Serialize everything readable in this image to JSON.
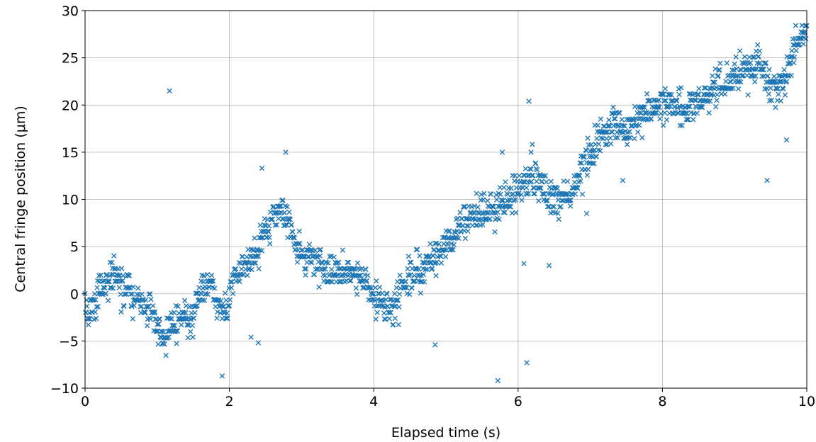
{
  "chart_data": {
    "type": "scatter",
    "title": "",
    "xlabel": "Elapsed time (s)",
    "ylabel": "Central fringe position (μm)",
    "xlim": [
      0,
      10
    ],
    "ylim": [
      -10,
      30
    ],
    "xticks": [
      0,
      2,
      4,
      6,
      8,
      10
    ],
    "yticks": [
      -10,
      -5,
      0,
      5,
      10,
      15,
      20,
      25,
      30
    ],
    "xtick_labels": [
      "0",
      "2",
      "4",
      "6",
      "8",
      "10"
    ],
    "ytick_labels": [
      "−10",
      "−5",
      "0",
      "5",
      "10",
      "15",
      "20",
      "25",
      "30"
    ],
    "grid": true,
    "marker": "x",
    "color": "#1f77b4",
    "series": [
      {
        "trend_x": [
          0.0,
          0.05,
          0.15,
          0.25,
          0.4,
          0.55,
          0.65,
          0.8,
          0.9,
          1.0,
          1.1,
          1.2,
          1.3,
          1.45,
          1.6,
          1.75,
          1.85,
          1.95,
          2.05,
          2.2,
          2.35,
          2.5,
          2.6,
          2.75,
          2.85,
          3.0,
          3.2,
          3.4,
          3.6,
          3.8,
          3.95,
          4.1,
          4.25,
          4.4,
          4.6,
          4.8,
          5.0,
          5.2,
          5.4,
          5.6,
          5.8,
          6.0,
          6.2,
          6.35,
          6.5,
          6.7,
          6.9,
          7.1,
          7.3,
          7.5,
          7.7,
          7.9,
          8.1,
          8.3,
          8.5,
          8.7,
          8.9,
          9.1,
          9.3,
          9.5,
          9.7,
          9.85,
          10.0
        ],
        "trend_y": [
          -1.0,
          -2.0,
          -0.5,
          0.5,
          2.0,
          1.0,
          0.0,
          -1.0,
          -2.0,
          -3.5,
          -4.5,
          -3.0,
          -2.5,
          -2.5,
          0.0,
          1.5,
          -1.0,
          -1.5,
          1.0,
          3.0,
          4.5,
          6.0,
          8.5,
          8.5,
          7.0,
          4.0,
          3.0,
          2.5,
          2.5,
          1.5,
          0.5,
          -1.0,
          -1.5,
          1.0,
          2.0,
          3.5,
          5.0,
          7.5,
          8.5,
          9.0,
          9.5,
          11.0,
          12.5,
          12.0,
          10.0,
          10.0,
          13.5,
          16.0,
          18.0,
          17.5,
          18.5,
          19.5,
          20.5,
          19.0,
          20.0,
          21.5,
          22.5,
          23.5,
          24.5,
          22.5,
          22.5,
          26.5,
          27.5
        ],
        "outliers_x": [
          1.17,
          1.9,
          2.3,
          2.4,
          2.45,
          2.78,
          4.85,
          5.72,
          5.78,
          6.08,
          6.12,
          6.15,
          6.18,
          6.43,
          6.95,
          7.45,
          9.45,
          9.72
        ],
        "outliers_y": [
          21.5,
          -8.7,
          -4.6,
          -5.2,
          13.3,
          15.0,
          -5.4,
          -9.2,
          15.0,
          3.2,
          -7.3,
          20.4,
          15.0,
          3.0,
          8.5,
          12.0,
          12.0,
          16.3
        ]
      }
    ]
  }
}
